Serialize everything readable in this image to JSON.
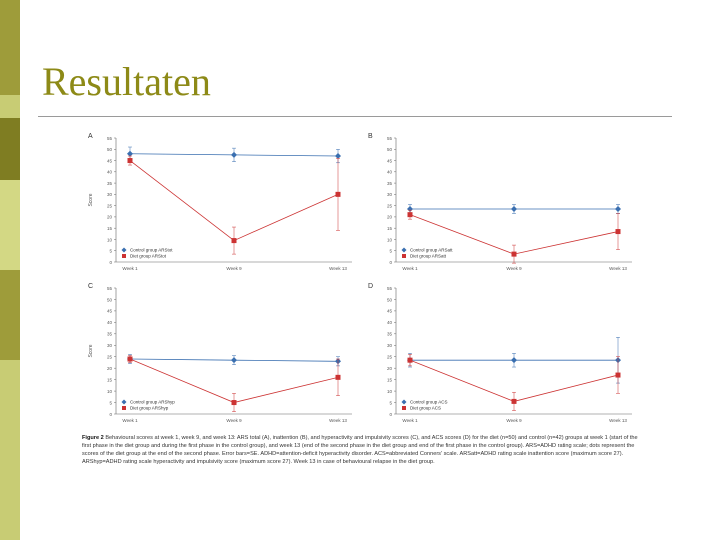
{
  "slide": {
    "title": "Resultaten",
    "stripe_colors": [
      "#9e9c3a",
      "#c8cc74",
      "#7f7d22",
      "#d3d884",
      "#9e9c3a",
      "#c8cc74"
    ],
    "title_color": "#8d8a17"
  },
  "caption": {
    "lead": "Figure 2",
    "text": "Behavioural scores at week 1, week 9, and week 13: ARS total (A), inattention (B), and hyperactivity and impulsivity scores (C), and ACS scores (D) for the diet (n=50) and control (n=42) groups at week 1 (start of the first phase in the diet group and during the first phase in the control group), and week 13 (end of the second phase in the diet group and end of the first phase in the control group). ARS=ADHD rating scale; dots represent the scores of the diet group at the end of the second phase. Error bars=SE. ADHD=attention-deficit hyperactivity disorder. ACS=abbreviated Conners' scale. ARSatt=ADHD rating scale inattention score (maximum score 27). ARShyp=ADHD rating scale hyperactivity and impulsivity score (maximum score 27). Week 13 in case of behavioural relapse in the diet group."
  },
  "chart_data": [
    {
      "type": "line",
      "panel_label": "A",
      "ylabel": "Score",
      "ylim": [
        0,
        55
      ],
      "yticks": [
        0,
        5,
        10,
        15,
        20,
        25,
        30,
        35,
        40,
        45,
        50,
        55
      ],
      "categories": [
        "Week 1",
        "Week 9",
        "Week 13"
      ],
      "series": [
        {
          "name": "Control group ARStot",
          "color": "#3a6fb0",
          "marker": "diamond",
          "values": [
            48,
            47.5,
            47
          ],
          "errors": [
            3,
            3,
            3
          ]
        },
        {
          "name": "Diet group ARStot",
          "color": "#cc3333",
          "marker": "square",
          "values": [
            45,
            9.5,
            30
          ],
          "errors": [
            2,
            6,
            16
          ]
        }
      ]
    },
    {
      "type": "line",
      "panel_label": "B",
      "ylabel": "",
      "ylim": [
        0,
        55
      ],
      "yticks": [
        0,
        5,
        10,
        15,
        20,
        25,
        30,
        35,
        40,
        45,
        50,
        55
      ],
      "categories": [
        "Week 1",
        "Week 9",
        "Week 13"
      ],
      "series": [
        {
          "name": "Control group ARSatt",
          "color": "#3a6fb0",
          "marker": "diamond",
          "values": [
            23.5,
            23.5,
            23.5
          ],
          "errors": [
            2,
            2,
            2
          ]
        },
        {
          "name": "Diet group ARSatt",
          "color": "#cc3333",
          "marker": "square",
          "values": [
            21,
            3.5,
            13.5
          ],
          "errors": [
            2,
            4,
            8
          ]
        }
      ]
    },
    {
      "type": "line",
      "panel_label": "C",
      "ylabel": "Score",
      "ylim": [
        0,
        55
      ],
      "yticks": [
        0,
        5,
        10,
        15,
        20,
        25,
        30,
        35,
        40,
        45,
        50,
        55
      ],
      "categories": [
        "Week 1",
        "Week 9",
        "Week 13"
      ],
      "series": [
        {
          "name": "Control group ARShyp",
          "color": "#3a6fb0",
          "marker": "diamond",
          "values": [
            24,
            23.5,
            23
          ],
          "errors": [
            2,
            2,
            2
          ]
        },
        {
          "name": "Diet group ARShyp",
          "color": "#cc3333",
          "marker": "square",
          "values": [
            24,
            5,
            16
          ],
          "errors": [
            1.5,
            4,
            8
          ]
        }
      ]
    },
    {
      "type": "line",
      "panel_label": "D",
      "ylabel": "",
      "ylim": [
        0,
        55
      ],
      "yticks": [
        0,
        5,
        10,
        15,
        20,
        25,
        30,
        35,
        40,
        45,
        50,
        55
      ],
      "categories": [
        "Week 1",
        "Week 9",
        "Week 13"
      ],
      "series": [
        {
          "name": "Control group ACS",
          "color": "#3a6fb0",
          "marker": "diamond",
          "values": [
            23.5,
            23.5,
            23.5
          ],
          "errors": [
            3,
            3,
            10
          ]
        },
        {
          "name": "Diet group ACS",
          "color": "#cc3333",
          "marker": "square",
          "values": [
            23.5,
            5.5,
            17
          ],
          "errors": [
            2.5,
            4,
            8
          ]
        }
      ]
    }
  ]
}
